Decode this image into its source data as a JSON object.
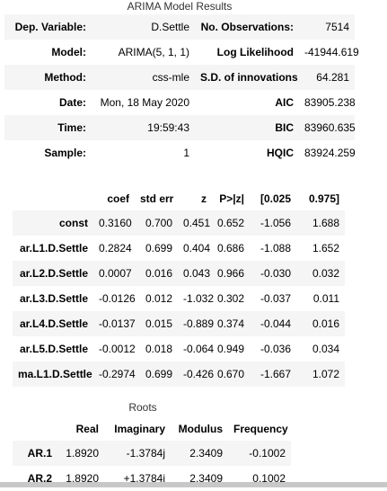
{
  "summary": {
    "caption": "ARIMA Model Results",
    "rows": [
      [
        "Dep. Variable:",
        "D.Settle",
        "No. Observations:",
        "7514"
      ],
      [
        "Model:",
        "ARIMA(5, 1, 1)",
        "Log Likelihood",
        "-41944.619"
      ],
      [
        "Method:",
        "css-mle",
        "S.D. of innovations",
        "64.281"
      ],
      [
        "Date:",
        "Mon, 18 May 2020",
        "AIC",
        "83905.238"
      ],
      [
        "Time:",
        "19:59:43",
        "BIC",
        "83960.635"
      ],
      [
        "Sample:",
        "1",
        "HQIC",
        "83924.259"
      ]
    ]
  },
  "coefficients": {
    "headers": [
      "",
      "coef",
      "std err",
      "z",
      "P>|z|",
      "[0.025",
      "0.975]"
    ],
    "rows": [
      [
        "const",
        "0.3160",
        "0.700",
        "0.451",
        "0.652",
        "-1.056",
        "1.688"
      ],
      [
        "ar.L1.D.Settle",
        "0.2824",
        "0.699",
        "0.404",
        "0.686",
        "-1.088",
        "1.652"
      ],
      [
        "ar.L2.D.Settle",
        "0.0007",
        "0.016",
        "0.043",
        "0.966",
        "-0.030",
        "0.032"
      ],
      [
        "ar.L3.D.Settle",
        "-0.0126",
        "0.012",
        "-1.032",
        "0.302",
        "-0.037",
        "0.011"
      ],
      [
        "ar.L4.D.Settle",
        "-0.0137",
        "0.015",
        "-0.889",
        "0.374",
        "-0.044",
        "0.016"
      ],
      [
        "ar.L5.D.Settle",
        "-0.0012",
        "0.018",
        "-0.064",
        "0.949",
        "-0.036",
        "0.034"
      ],
      [
        "ma.L1.D.Settle",
        "-0.2974",
        "0.699",
        "-0.426",
        "0.670",
        "-1.667",
        "1.072"
      ]
    ]
  },
  "roots": {
    "caption": "Roots",
    "headers": [
      "",
      "Real",
      "Imaginary",
      "Modulus",
      "Frequency"
    ],
    "rows": [
      [
        "AR.1",
        "1.8920",
        "-1.3784j",
        "2.3409",
        "-0.1002"
      ],
      [
        "AR.2",
        "1.8920",
        "+1.3784j",
        "2.3409",
        "0.1002"
      ]
    ]
  }
}
